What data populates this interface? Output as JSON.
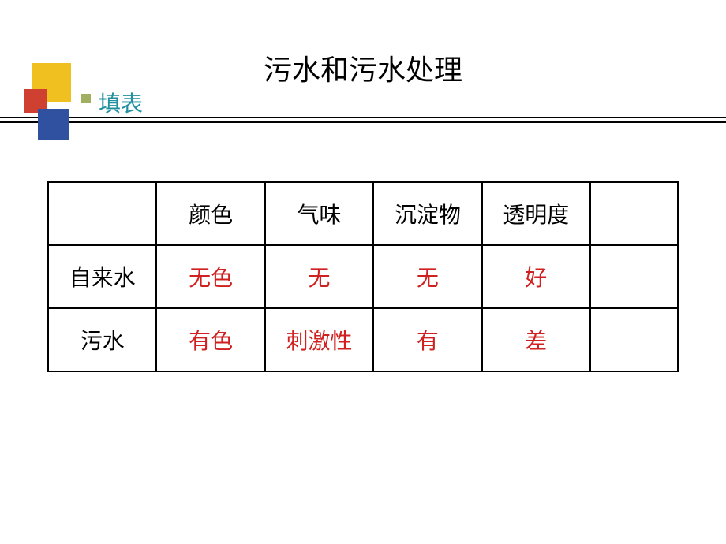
{
  "title": "污水和污水处理",
  "subtitle": "填表",
  "decoration": {
    "yellow_color": "#f0c020",
    "red_color": "#d04030",
    "blue_color": "#3050a0",
    "bullet_color": "#a0b060",
    "line_color": "#000000"
  },
  "table": {
    "type": "table",
    "border_color": "#000000",
    "header_text_color": "#000000",
    "label_text_color": "#000000",
    "data_text_color": "#d02020",
    "font_size": 28,
    "columns": [
      "",
      "颜色",
      "气味",
      "沉淀物",
      "透明度",
      ""
    ],
    "rows": [
      {
        "label": "自来水",
        "values": [
          "无色",
          "无",
          "无",
          "好"
        ]
      },
      {
        "label": "污水",
        "values": [
          "有色",
          "刺激性",
          "有",
          "差"
        ]
      }
    ]
  }
}
